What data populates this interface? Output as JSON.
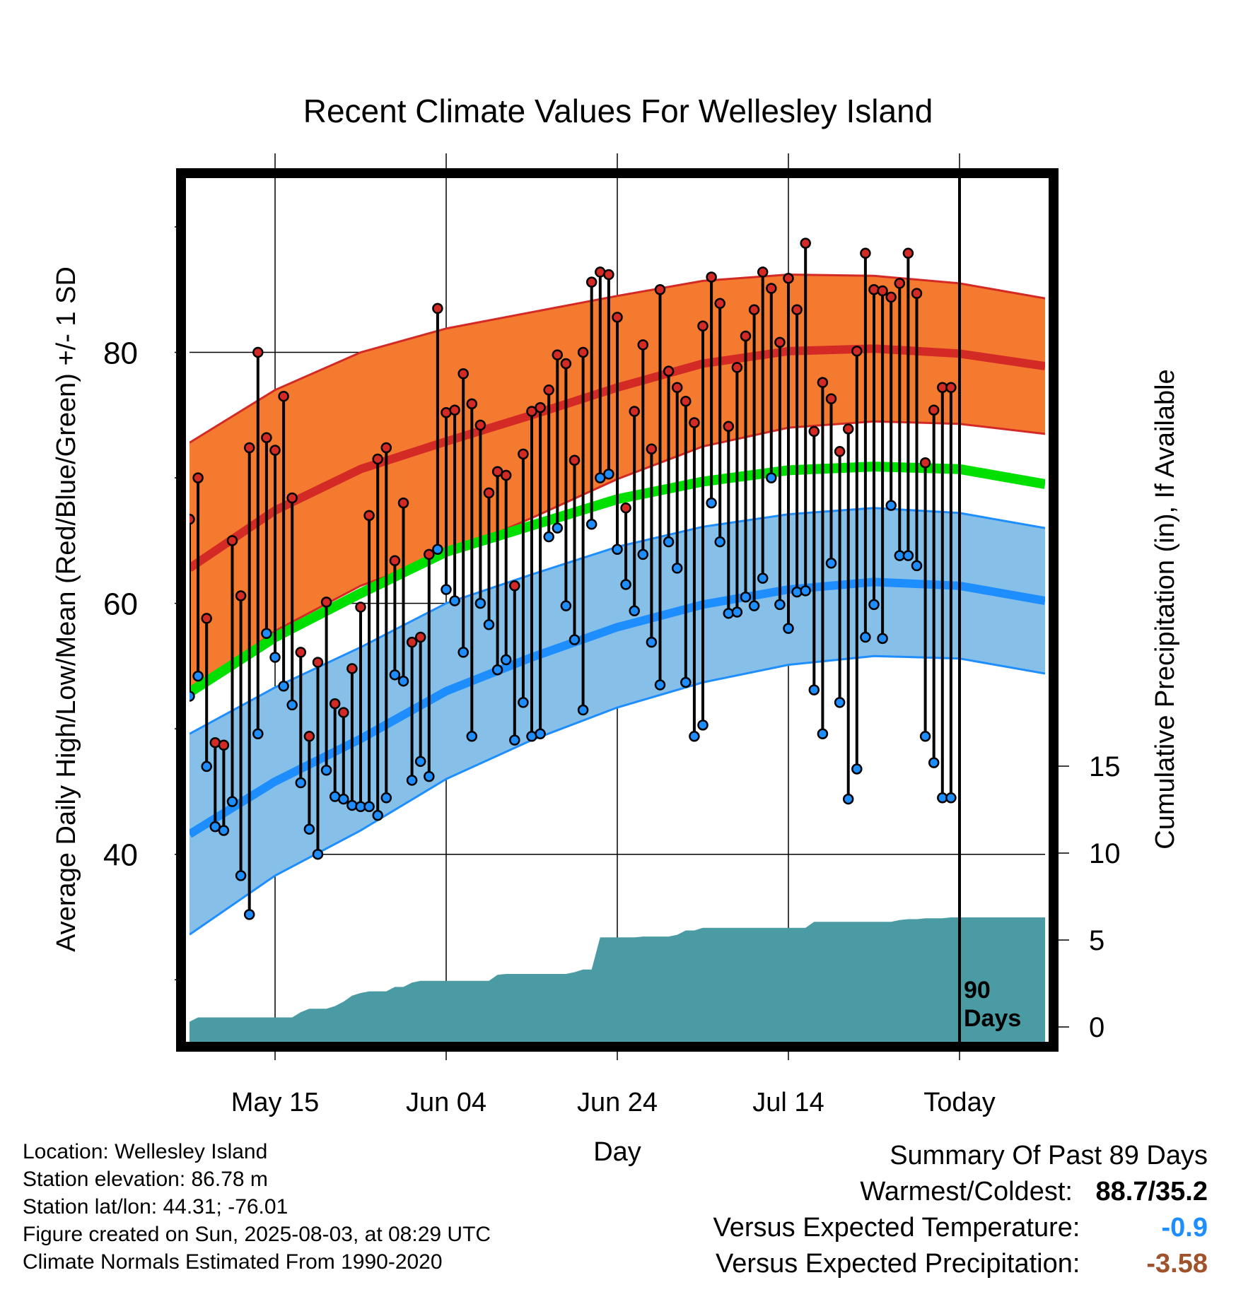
{
  "chart_data": {
    "type": "line",
    "title": "Recent Climate Values For Wellesley Island",
    "xlabel": "Day",
    "ylabel": "Average Daily High/Low/Mean (Red/Blue/Green) +/- 1 SD",
    "y2label": "Cumulative Precipitation (in), If Available",
    "x_ticks": [
      "May 15",
      "Jun 04",
      "Jun 24",
      "Jul 14",
      "Today"
    ],
    "x_tick_day_index": [
      10,
      30,
      50,
      70,
      90
    ],
    "ylim": [
      25,
      94
    ],
    "y_ticks": [
      40,
      60,
      80
    ],
    "y2lim": [
      0,
      30
    ],
    "y2_ticks": [
      0,
      5,
      10,
      15
    ],
    "grid": true,
    "today_marker_label": "90\nDays",
    "normals": {
      "x_day_index": [
        0,
        10,
        20,
        30,
        40,
        50,
        60,
        70,
        80,
        90,
        100
      ],
      "high_mean": [
        62.8,
        67.4,
        70.7,
        72.9,
        75.0,
        77.2,
        79.1,
        80.1,
        80.3,
        79.9,
        78.9
      ],
      "high_sd": [
        10.0,
        9.6,
        9.3,
        9.0,
        8.2,
        7.3,
        6.6,
        6.1,
        5.8,
        5.6,
        5.4
      ],
      "low_mean": [
        41.6,
        45.8,
        49.2,
        53.0,
        55.7,
        58.1,
        59.9,
        61.1,
        61.7,
        61.4,
        60.2
      ],
      "low_sd": [
        8.0,
        7.5,
        7.3,
        7.0,
        6.6,
        6.4,
        6.2,
        6.0,
        5.9,
        5.8,
        5.8
      ],
      "mean": [
        52.9,
        57.3,
        60.8,
        64.1,
        66.2,
        68.3,
        69.7,
        70.6,
        70.9,
        70.7,
        69.5
      ]
    },
    "daily": {
      "x_day_index": [
        0,
        1,
        2,
        3,
        4,
        5,
        6,
        7,
        8,
        9,
        10,
        11,
        12,
        13,
        14,
        15,
        16,
        17,
        18,
        19,
        20,
        21,
        22,
        23,
        24,
        25,
        26,
        27,
        28,
        29,
        30,
        31,
        32,
        33,
        34,
        35,
        36,
        37,
        38,
        39,
        40,
        41,
        42,
        43,
        44,
        45,
        46,
        47,
        48,
        49,
        50,
        51,
        52,
        53,
        54,
        55,
        56,
        57,
        58,
        59,
        60,
        61,
        62,
        63,
        64,
        65,
        66,
        67,
        68,
        69,
        70,
        71,
        72,
        73,
        74,
        75,
        76,
        77,
        78,
        79,
        80,
        81,
        82,
        83,
        84,
        85,
        86,
        87,
        88,
        89
      ],
      "high": [
        66.7,
        70.0,
        58.8,
        48.9,
        48.7,
        65.0,
        60.6,
        72.4,
        80.0,
        73.2,
        72.2,
        76.5,
        68.4,
        56.1,
        49.4,
        55.3,
        60.1,
        52.0,
        51.3,
        54.8,
        59.7,
        67.0,
        71.5,
        72.4,
        63.4,
        68.0,
        56.9,
        57.3,
        63.9,
        83.5,
        75.2,
        75.4,
        78.3,
        75.9,
        74.2,
        68.8,
        70.5,
        70.2,
        61.4,
        71.9,
        75.3,
        75.6,
        77.0,
        79.8,
        79.1,
        71.4,
        80.0,
        85.6,
        86.4,
        86.2,
        82.8,
        67.6,
        75.3,
        80.6,
        72.3,
        85.0,
        78.5,
        77.2,
        76.1,
        74.4,
        82.1,
        86.0,
        83.9,
        74.1,
        78.8,
        81.3,
        83.4,
        86.4,
        85.1,
        80.8,
        85.9,
        83.4,
        88.7,
        73.7,
        77.6,
        76.3,
        72.1,
        73.9,
        80.1,
        87.9,
        85.0,
        84.9,
        84.4,
        85.5,
        87.9,
        84.7,
        71.2,
        75.4,
        77.2,
        77.2
      ],
      "low": [
        52.6,
        54.2,
        47.0,
        42.2,
        41.9,
        44.2,
        38.3,
        35.2,
        49.6,
        57.6,
        55.7,
        53.4,
        51.9,
        45.7,
        42.0,
        40.0,
        46.7,
        44.6,
        44.4,
        43.9,
        43.8,
        43.8,
        43.1,
        44.5,
        54.3,
        53.8,
        45.9,
        47.4,
        46.2,
        64.3,
        61.1,
        60.2,
        56.1,
        49.4,
        60.0,
        58.3,
        54.7,
        55.5,
        49.1,
        52.1,
        49.4,
        49.6,
        65.3,
        66.0,
        59.8,
        57.1,
        51.5,
        66.3,
        70.0,
        70.3,
        64.3,
        61.5,
        59.4,
        63.9,
        56.9,
        53.5,
        64.9,
        62.8,
        53.7,
        49.4,
        50.3,
        68.0,
        64.9,
        59.2,
        59.3,
        60.5,
        59.8,
        62.0,
        70.0,
        59.9,
        58.0,
        60.9,
        61.0,
        53.1,
        49.6,
        63.2,
        52.1,
        44.4,
        46.8,
        57.3,
        59.9,
        57.2,
        67.8,
        63.8,
        63.8,
        63.0,
        49.4,
        47.3,
        44.5,
        44.5
      ]
    },
    "precip_cumulative": {
      "x_day_index": [
        0,
        1,
        2,
        3,
        4,
        5,
        6,
        7,
        8,
        9,
        10,
        11,
        12,
        13,
        14,
        15,
        16,
        17,
        18,
        19,
        20,
        21,
        22,
        23,
        24,
        25,
        26,
        27,
        28,
        29,
        30,
        31,
        32,
        33,
        34,
        35,
        36,
        37,
        38,
        39,
        40,
        41,
        42,
        43,
        44,
        45,
        46,
        47,
        48,
        49,
        50,
        51,
        52,
        53,
        54,
        55,
        56,
        57,
        58,
        59,
        60,
        61,
        62,
        63,
        64,
        65,
        66,
        67,
        68,
        69,
        70,
        71,
        72,
        73,
        74,
        75,
        76,
        77,
        78,
        79,
        80,
        81,
        82,
        83,
        84,
        85,
        86,
        87,
        88,
        89,
        90,
        91,
        92,
        93,
        94,
        95,
        96,
        97,
        98,
        99,
        100
      ],
      "values": [
        0.3,
        0.55,
        0.55,
        0.55,
        0.55,
        0.55,
        0.55,
        0.55,
        0.55,
        0.55,
        0.55,
        0.55,
        0.55,
        0.85,
        1.05,
        1.05,
        1.05,
        1.2,
        1.45,
        1.8,
        1.95,
        2.05,
        2.05,
        2.05,
        2.3,
        2.3,
        2.55,
        2.65,
        2.65,
        2.65,
        2.65,
        2.65,
        2.65,
        2.65,
        2.65,
        2.65,
        3.0,
        3.05,
        3.05,
        3.05,
        3.05,
        3.05,
        3.05,
        3.05,
        3.05,
        3.15,
        3.3,
        3.3,
        5.15,
        5.15,
        5.15,
        5.15,
        5.15,
        5.2,
        5.2,
        5.2,
        5.2,
        5.3,
        5.55,
        5.55,
        5.7,
        5.7,
        5.7,
        5.7,
        5.7,
        5.7,
        5.7,
        5.7,
        5.7,
        5.7,
        5.7,
        5.7,
        5.7,
        6.05,
        6.05,
        6.05,
        6.05,
        6.05,
        6.05,
        6.05,
        6.05,
        6.05,
        6.05,
        6.15,
        6.2,
        6.2,
        6.25,
        6.25,
        6.25,
        6.3,
        6.3,
        6.3,
        6.3,
        6.3,
        6.3,
        6.3,
        6.3,
        6.3,
        6.3,
        6.3,
        6.3
      ]
    },
    "colors": {
      "high_band": "#f47a30",
      "high_line": "#d42a25",
      "low_band": "#86c0e8",
      "low_line": "#1e8eff",
      "mean_line": "#00e000",
      "precip": "#4a9ba3",
      "high_dot": "#d42a25",
      "low_dot": "#1e8eff",
      "frame": "#000000"
    }
  },
  "station_info": [
    "Location: Wellesley Island",
    "Station elevation: 86.78 m",
    "Station lat/lon: 44.31; -76.01",
    "Figure created on Sun, 2025-08-03, at 08:29 UTC",
    "Climate Normals Estimated From 1990-2020"
  ],
  "summary": {
    "heading": "Summary Of Past 89 Days",
    "warmest_coldest_label": "Warmest/Coldest:",
    "warmest_coldest_value": "88.7/35.2",
    "temp_label": "Versus Expected Temperature:",
    "temp_value": "-0.9",
    "temp_color": "#1e8eff",
    "precip_label": "Versus Expected Precipitation:",
    "precip_value": "-3.58",
    "precip_color": "#a0522d"
  }
}
